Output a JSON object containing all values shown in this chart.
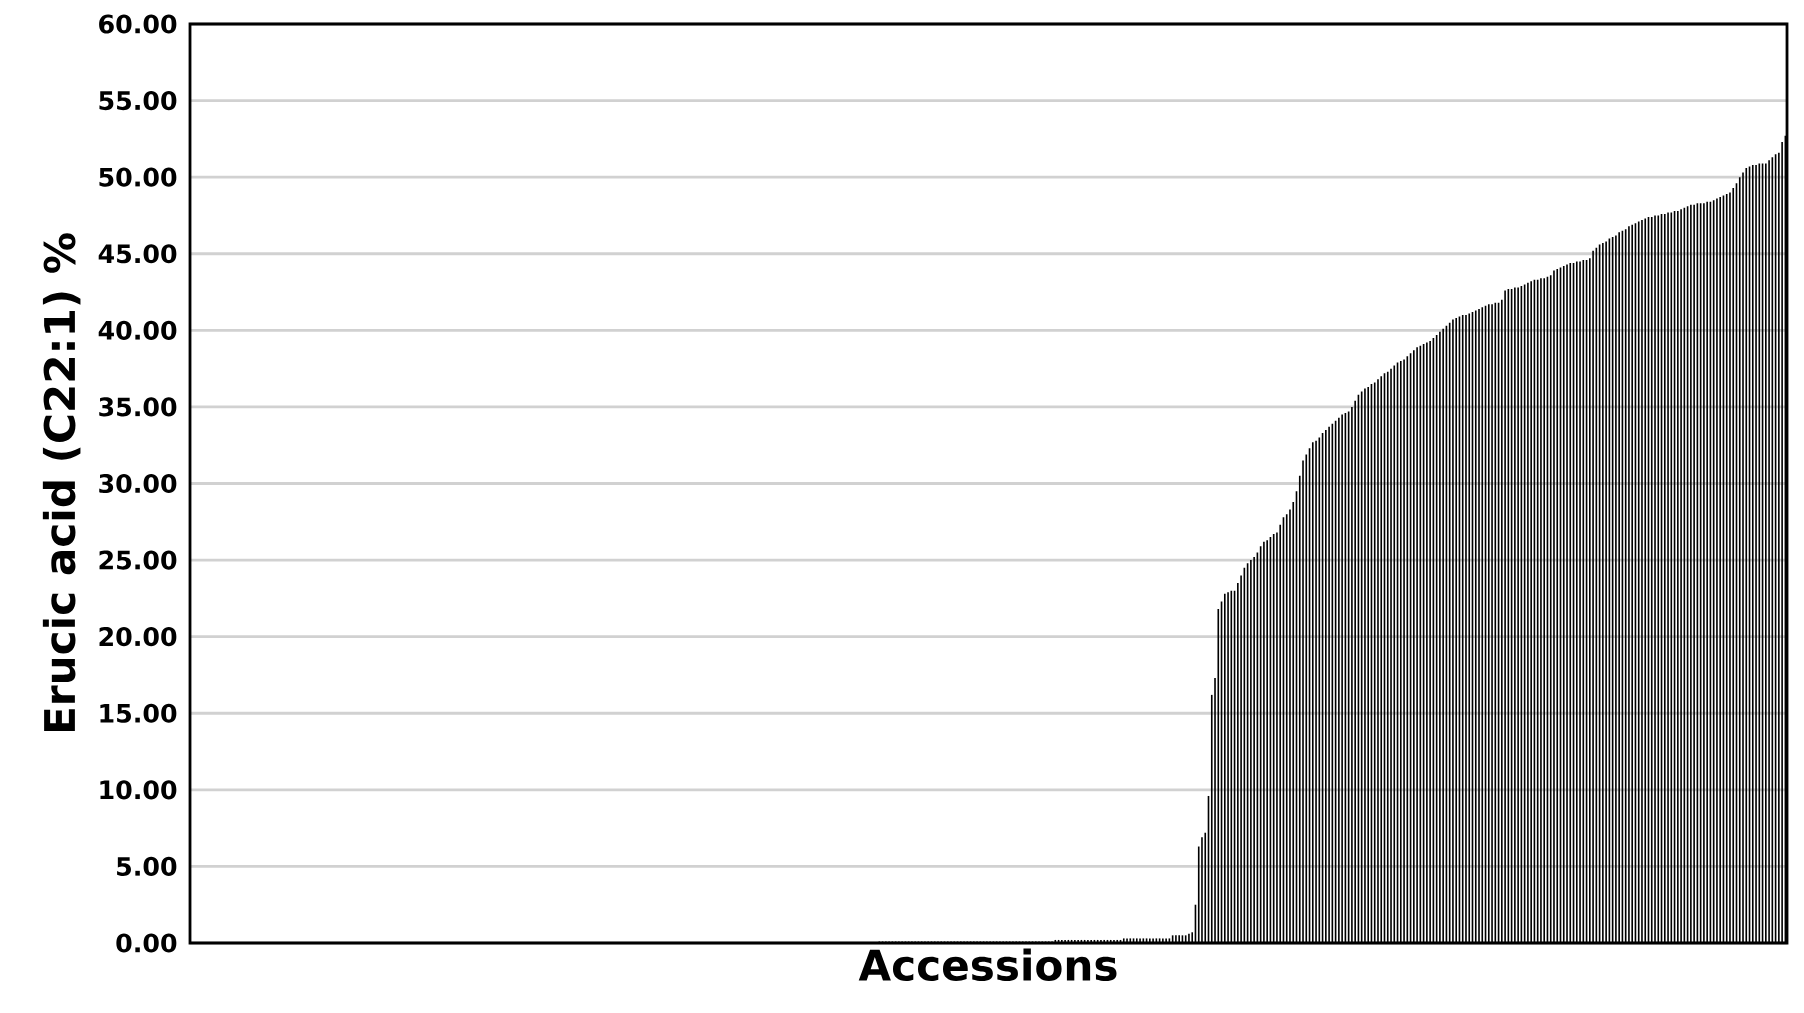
{
  "chart_data": {
    "type": "bar",
    "xlabel": "Accessions",
    "ylabel": "Erucic acid (C22:1) %",
    "categories": [
      null,
      null,
      null,
      null,
      null,
      null,
      null,
      null,
      null,
      null,
      null,
      null,
      null,
      null,
      null,
      null,
      null,
      null,
      null,
      null,
      null,
      null,
      null,
      null,
      null,
      null,
      null,
      null,
      null,
      null,
      null,
      null,
      null,
      null,
      null,
      null,
      null,
      null,
      null,
      null,
      null,
      null,
      null,
      null,
      null,
      null,
      null,
      null,
      null,
      null,
      null,
      null,
      null,
      null,
      null,
      null,
      null,
      null,
      null,
      null,
      null,
      null,
      null,
      null,
      null,
      null,
      null,
      null,
      null,
      null,
      null,
      null,
      null,
      null,
      null,
      null,
      null,
      null,
      null,
      null,
      null,
      null,
      null,
      null,
      null,
      null,
      null,
      null,
      null,
      null,
      null,
      null,
      null,
      null,
      null,
      null,
      null,
      null,
      null,
      null,
      null,
      null,
      null,
      null,
      null,
      null,
      null,
      null,
      null,
      null,
      null,
      null,
      null,
      null,
      null,
      null,
      null,
      null,
      null,
      null,
      null,
      null,
      null,
      null,
      null,
      null,
      null,
      null,
      null,
      null,
      null,
      null,
      null,
      null,
      null,
      null,
      null,
      null,
      null,
      null,
      null,
      null,
      null,
      null,
      null,
      null,
      null,
      null,
      null,
      null,
      null,
      null,
      null,
      null,
      null,
      null,
      null,
      null,
      null,
      null,
      null,
      null,
      null,
      null,
      null,
      null,
      null,
      null,
      null,
      null,
      null,
      null,
      null,
      null,
      null,
      null,
      null,
      null,
      null,
      null,
      null,
      null,
      null,
      null,
      null,
      null,
      null,
      null,
      null,
      null,
      null,
      null,
      null,
      null,
      null,
      null,
      null,
      null,
      null,
      null,
      null,
      null,
      null,
      null,
      null,
      null,
      null,
      null,
      null,
      null,
      null,
      null,
      null,
      null,
      null,
      null,
      null,
      null,
      null,
      null,
      null,
      null,
      null,
      null,
      null,
      null,
      null,
      null,
      null,
      null,
      null,
      null,
      null,
      null,
      null,
      null,
      null,
      null,
      null,
      null,
      null,
      null,
      null,
      null,
      null,
      null,
      null,
      null,
      null,
      null,
      null,
      null,
      null,
      null,
      null,
      null,
      null,
      null,
      null,
      null,
      null,
      null,
      null,
      null,
      null,
      null,
      null,
      null,
      null,
      null,
      null,
      null,
      null,
      null,
      null,
      null,
      null,
      null,
      null,
      null,
      null,
      null,
      null,
      null,
      null,
      null,
      null,
      null,
      null,
      null,
      null,
      null,
      null,
      null,
      null,
      null,
      null,
      null,
      null,
      null,
      null,
      null,
      null,
      null,
      null,
      null,
      null,
      null,
      null,
      null,
      null,
      null,
      null,
      null,
      null,
      null,
      null,
      null,
      null,
      null,
      null,
      null,
      null,
      null,
      null,
      null,
      null,
      null,
      null,
      null,
      null,
      null,
      null,
      null,
      null,
      null,
      null,
      null,
      null,
      null,
      null,
      null,
      null,
      null,
      null,
      null,
      null,
      null,
      null,
      null,
      null,
      null,
      null,
      null,
      null,
      null,
      null,
      null,
      null,
      null,
      null,
      null,
      null,
      null,
      null,
      null,
      null,
      null,
      null,
      null,
      null,
      null,
      null,
      null,
      null,
      null,
      null,
      null,
      null,
      null,
      null,
      null,
      null,
      null,
      null,
      null,
      null,
      null,
      null,
      null,
      null,
      null,
      null,
      null,
      null,
      null,
      null,
      null,
      null,
      null,
      null,
      null,
      null,
      null,
      null,
      null,
      null,
      null,
      null,
      null,
      null,
      null,
      null,
      null,
      null,
      null,
      null,
      null,
      null,
      null,
      null,
      null,
      null,
      null,
      null,
      null,
      null,
      null,
      null,
      null,
      null,
      null,
      null,
      null,
      null,
      null,
      null,
      null,
      null,
      null,
      null,
      null,
      null,
      null,
      null,
      null,
      null,
      null,
      null,
      null,
      null,
      null,
      null,
      null,
      null,
      null,
      null,
      null,
      null,
      null,
      null,
      null,
      null,
      null,
      null,
      null,
      null,
      null,
      null,
      null,
      null,
      null,
      null,
      null,
      null,
      null,
      null,
      null,
      null,
      null,
      null,
      null,
      null,
      null,
      null,
      null,
      null,
      null,
      null,
      null
    ],
    "values": [
      0,
      0,
      0,
      0,
      0,
      0,
      0,
      0,
      0,
      0,
      0,
      0,
      0,
      0,
      0,
      0,
      0,
      0,
      0,
      0,
      0,
      0,
      0,
      0,
      0,
      0,
      0,
      0,
      0,
      0,
      0,
      0,
      0,
      0,
      0,
      0,
      0,
      0,
      0,
      0,
      0,
      0,
      0,
      0,
      0,
      0,
      0,
      0,
      0,
      0,
      0,
      0,
      0,
      0,
      0,
      0,
      0,
      0,
      0,
      0,
      0,
      0,
      0,
      0,
      0,
      0,
      0,
      0,
      0,
      0,
      0,
      0,
      0,
      0,
      0,
      0,
      0,
      0,
      0,
      0,
      0,
      0.05,
      0.05,
      0.05,
      0.05,
      0.05,
      0.05,
      0.05,
      0.05,
      0.05,
      0.05,
      0.05,
      0.05,
      0.05,
      0.05,
      0.05,
      0.05,
      0.05,
      0.05,
      0.05,
      0.05,
      0.05,
      0.05,
      0.05,
      0.05,
      0.05,
      0.05,
      0.05,
      0.05,
      0.05,
      0.05,
      0.05,
      0.05,
      0.05,
      0.05,
      0.05,
      0.05,
      0.05,
      0.05,
      0.05,
      0.05,
      0.05,
      0.05,
      0.05,
      0.05,
      0.05,
      0.05,
      0.05,
      0.05,
      0.05,
      0.05,
      0.05,
      0.05,
      0.05,
      0.05,
      0.05,
      0.05,
      0.05,
      0.05,
      0.05,
      0.05,
      0.05,
      0.05,
      0.05,
      0.05,
      0.05,
      0.05,
      0.05,
      0.05,
      0.05,
      0.05,
      0.05,
      0.05,
      0.05,
      0.05,
      0.05,
      0.05,
      0.05,
      0.05,
      0.05,
      0.05,
      0.05,
      0.05,
      0.05,
      0.05,
      0.05,
      0.05,
      0.05,
      0.05,
      0.05,
      0.05,
      0.05,
      0.05,
      0.05,
      0.05,
      0.05,
      0.05,
      0.05,
      0.05,
      0.05,
      0.05,
      0.05,
      0.05,
      0.05,
      0.05,
      0.05,
      0.05,
      0.05,
      0.05,
      0.05,
      0.05,
      0.05,
      0.05,
      0.05,
      0.05,
      0.05,
      0.05,
      0.05,
      0.05,
      0.05,
      0.05,
      0.05,
      0.05,
      0.05,
      0.05,
      0.05,
      0.05,
      0.05,
      0.05,
      0.05,
      0.05,
      0.1,
      0.1,
      0.1,
      0.1,
      0.1,
      0.1,
      0.1,
      0.1,
      0.1,
      0.1,
      0.1,
      0.1,
      0.1,
      0.1,
      0.1,
      0.1,
      0.1,
      0.1,
      0.1,
      0.1,
      0.1,
      0.1,
      0.1,
      0.1,
      0.1,
      0.1,
      0.1,
      0.1,
      0.1,
      0.1,
      0.1,
      0.1,
      0.1,
      0.1,
      0.1,
      0.1,
      0.1,
      0.1,
      0.1,
      0.1,
      0.1,
      0.1,
      0.1,
      0.1,
      0.1,
      0.1,
      0.1,
      0.1,
      0.1,
      0.1,
      0.1,
      0.1,
      0.1,
      0.1,
      0.2,
      0.2,
      0.2,
      0.2,
      0.2,
      0.2,
      0.2,
      0.2,
      0.2,
      0.2,
      0.2,
      0.2,
      0.2,
      0.2,
      0.2,
      0.2,
      0.2,
      0.2,
      0.2,
      0.2,
      0.2,
      0.3,
      0.3,
      0.3,
      0.3,
      0.3,
      0.3,
      0.3,
      0.3,
      0.3,
      0.3,
      0.3,
      0.3,
      0.3,
      0.3,
      0.3,
      0.5,
      0.5,
      0.5,
      0.5,
      0.5,
      0.6,
      0.7,
      2.5,
      6.3,
      6.9,
      7.2,
      9.6,
      16.2,
      17.3,
      21.8,
      22.3,
      22.8,
      22.9,
      23.0,
      23.0,
      23.5,
      24.0,
      24.5,
      24.8,
      25.0,
      25.2,
      25.5,
      25.9,
      26.2,
      26.3,
      26.5,
      26.7,
      26.8,
      27.3,
      27.8,
      28.0,
      28.3,
      28.8,
      29.5,
      30.5,
      31.5,
      31.9,
      32.3,
      32.7,
      32.8,
      33.0,
      33.3,
      33.5,
      33.7,
      33.9,
      34.1,
      34.3,
      34.5,
      34.6,
      34.7,
      35.0,
      35.4,
      35.8,
      36.0,
      36.2,
      36.3,
      36.5,
      36.6,
      36.8,
      37.0,
      37.2,
      37.3,
      37.5,
      37.7,
      37.9,
      38.0,
      38.1,
      38.3,
      38.5,
      38.7,
      38.9,
      39.0,
      39.1,
      39.2,
      39.3,
      39.5,
      39.7,
      39.9,
      40.1,
      40.3,
      40.5,
      40.7,
      40.8,
      40.9,
      41.0,
      41.0,
      41.1,
      41.2,
      41.3,
      41.4,
      41.5,
      41.6,
      41.7,
      41.7,
      41.8,
      41.8,
      42.0,
      42.6,
      42.7,
      42.7,
      42.8,
      42.8,
      42.9,
      43.0,
      43.1,
      43.2,
      43.3,
      43.3,
      43.4,
      43.4,
      43.5,
      43.6,
      43.9,
      44.0,
      44.1,
      44.2,
      44.3,
      44.4,
      44.4,
      44.5,
      44.5,
      44.6,
      44.6,
      44.7,
      45.2,
      45.4,
      45.6,
      45.7,
      45.8,
      46.0,
      46.1,
      46.2,
      46.4,
      46.5,
      46.6,
      46.8,
      46.9,
      47.0,
      47.1,
      47.2,
      47.3,
      47.4,
      47.4,
      47.5,
      47.5,
      47.6,
      47.6,
      47.7,
      47.7,
      47.8,
      47.8,
      47.9,
      48.0,
      48.1,
      48.2,
      48.2,
      48.3,
      48.3,
      48.3,
      48.4,
      48.4,
      48.5,
      48.6,
      48.7,
      48.8,
      48.9,
      49.0,
      49.3,
      49.6,
      50.0,
      50.3,
      50.6,
      50.7,
      50.8,
      50.8,
      50.9,
      50.9,
      50.9,
      51.1,
      51.3,
      51.5,
      51.6,
      52.3,
      52.7
    ],
    "color": "#000000",
    "ylim": [
      0,
      60
    ],
    "yticks": [
      {
        "value": 0,
        "label": "0.00"
      },
      {
        "value": 5,
        "label": "5.00"
      },
      {
        "value": 10,
        "label": "10.00"
      },
      {
        "value": 15,
        "label": "15.00"
      },
      {
        "value": 20,
        "label": "20.00"
      },
      {
        "value": 25,
        "label": "25.00"
      },
      {
        "value": 30,
        "label": "30.00"
      },
      {
        "value": 35,
        "label": "35.00"
      },
      {
        "value": 40,
        "label": "40.00"
      },
      {
        "value": 45,
        "label": "45.00"
      },
      {
        "value": 50,
        "label": "50.00"
      },
      {
        "value": 55,
        "label": "55.00"
      },
      {
        "value": 60,
        "label": "60.00"
      }
    ],
    "grid": "y"
  }
}
